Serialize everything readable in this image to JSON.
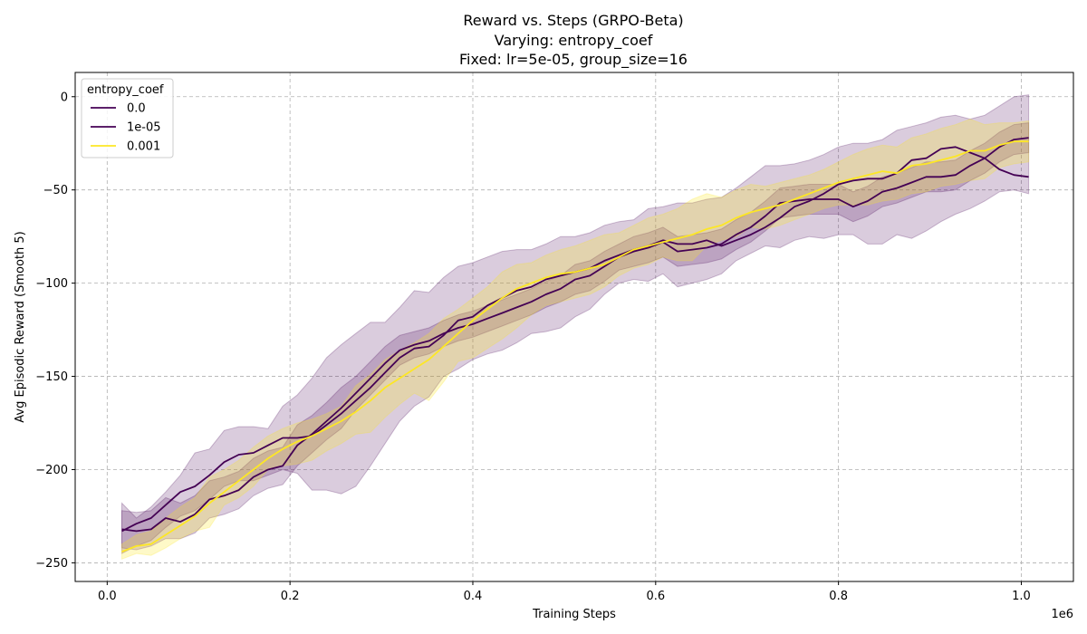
{
  "chart_data": {
    "type": "line",
    "title_lines": [
      "Reward vs. Steps (GRPO-Beta)",
      "Varying: entropy_coef",
      "Fixed: lr=5e-05, group_size=16"
    ],
    "xlabel": "Training Steps",
    "ylabel": "Avg Episodic Reward (Smooth 5)",
    "x_offset_label": "1e6",
    "xlim": [
      -35000,
      1057000
    ],
    "ylim": [
      -260,
      13
    ],
    "x_ticks": [
      0,
      0.2,
      0.4,
      0.6,
      0.8,
      1.0
    ],
    "x_tick_labels": [
      "0.0",
      "0.2",
      "0.4",
      "0.6",
      "0.8",
      "1.0"
    ],
    "y_ticks": [
      0,
      -50,
      -100,
      -150,
      -200,
      -250
    ],
    "y_tick_labels": [
      "0",
      "−50",
      "−100",
      "−150",
      "−200",
      "−250"
    ],
    "grid": true,
    "legend": {
      "title": "entropy_coef",
      "position": "upper-left"
    },
    "series": [
      {
        "name": "0.0",
        "color": "#440154",
        "band_color": "#440154",
        "x": [
          16000,
          32000,
          48000,
          64000,
          80000,
          96000,
          112000,
          128000,
          144000,
          160000,
          176000,
          192000,
          208000,
          224000,
          240000,
          256000,
          272000,
          288000,
          304000,
          320000,
          336000,
          352000,
          368000,
          384000,
          400000,
          416000,
          432000,
          448000,
          464000,
          480000,
          496000,
          512000,
          528000,
          544000,
          560000,
          576000,
          592000,
          608000,
          624000,
          640000,
          656000,
          672000,
          688000,
          704000,
          720000,
          736000,
          752000,
          768000,
          784000,
          800000,
          816000,
          832000,
          848000,
          864000,
          880000,
          896000,
          912000,
          928000,
          944000,
          960000,
          976000,
          992000,
          1008000
        ],
        "y": [
          -232,
          -233,
          -232,
          -226,
          -228,
          -224,
          -216,
          -214,
          -211,
          -204,
          -200,
          -198,
          -187,
          -181,
          -174,
          -167,
          -159,
          -151,
          -143,
          -136,
          -133,
          -131,
          -127,
          -124,
          -122,
          -119,
          -116,
          -113,
          -110,
          -106,
          -103,
          -98,
          -96,
          -91,
          -86,
          -83,
          -81,
          -78,
          -83,
          -82,
          -81,
          -79,
          -74,
          -70,
          -64,
          -57,
          -56,
          -55,
          -55,
          -55,
          -59,
          -56,
          -51,
          -49,
          -46,
          -43,
          -43,
          -42,
          -37,
          -33,
          -27,
          -23,
          -22
        ],
        "lower": [
          -242,
          -243,
          -241,
          -237,
          -237,
          -234,
          -226,
          -224,
          -221,
          -214,
          -210,
          -208,
          -198,
          -191,
          -184,
          -178,
          -168,
          -160,
          -152,
          -144,
          -140,
          -138,
          -134,
          -131,
          -129,
          -126,
          -123,
          -120,
          -117,
          -113,
          -110,
          -106,
          -104,
          -99,
          -93,
          -91,
          -89,
          -86,
          -91,
          -90,
          -89,
          -87,
          -82,
          -78,
          -72,
          -65,
          -64,
          -63,
          -63,
          -63,
          -67,
          -64,
          -59,
          -57,
          -54,
          -51,
          -51,
          -50,
          -45,
          -41,
          -35,
          -31,
          -30
        ],
        "upper": [
          -222,
          -223,
          -222,
          -215,
          -218,
          -214,
          -206,
          -204,
          -201,
          -194,
          -190,
          -188,
          -176,
          -171,
          -164,
          -156,
          -150,
          -142,
          -134,
          -128,
          -126,
          -124,
          -120,
          -117,
          -115,
          -112,
          -109,
          -106,
          -103,
          -99,
          -96,
          -90,
          -88,
          -83,
          -79,
          -75,
          -73,
          -70,
          -75,
          -74,
          -73,
          -71,
          -66,
          -62,
          -56,
          -49,
          -48,
          -47,
          -47,
          -47,
          -51,
          -48,
          -43,
          -41,
          -38,
          -35,
          -35,
          -34,
          -29,
          -25,
          -19,
          -15,
          -14
        ]
      },
      {
        "name": "1e-05",
        "color": "#440154",
        "band_color": "#440154",
        "x": [
          16000,
          32000,
          48000,
          64000,
          80000,
          96000,
          112000,
          128000,
          144000,
          160000,
          176000,
          192000,
          208000,
          224000,
          240000,
          256000,
          272000,
          288000,
          304000,
          320000,
          336000,
          352000,
          368000,
          384000,
          400000,
          416000,
          432000,
          448000,
          464000,
          480000,
          496000,
          512000,
          528000,
          544000,
          560000,
          576000,
          592000,
          608000,
          624000,
          640000,
          656000,
          672000,
          688000,
          704000,
          720000,
          736000,
          752000,
          768000,
          784000,
          800000,
          816000,
          832000,
          848000,
          864000,
          880000,
          896000,
          912000,
          928000,
          944000,
          960000,
          976000,
          992000,
          1008000
        ],
        "y": [
          -233,
          -229,
          -226,
          -219,
          -212,
          -209,
          -203,
          -196,
          -192,
          -191,
          -187,
          -183,
          -183,
          -182,
          -176,
          -170,
          -163,
          -156,
          -148,
          -140,
          -135,
          -134,
          -128,
          -120,
          -118,
          -112,
          -108,
          -104,
          -102,
          -98,
          -96,
          -94,
          -92,
          -88,
          -85,
          -82,
          -80,
          -77,
          -79,
          -79,
          -77,
          -80,
          -77,
          -74,
          -70,
          -65,
          -59,
          -56,
          -52,
          -47,
          -45,
          -44,
          -44,
          -41,
          -34,
          -33,
          -28,
          -27,
          -30,
          -33,
          -39,
          -42,
          -43
        ],
        "lower": [
          -245,
          -241,
          -238,
          -231,
          -225,
          -222,
          -216,
          -209,
          -206,
          -206,
          -203,
          -200,
          -202,
          -211,
          -211,
          -213,
          -209,
          -198,
          -186,
          -174,
          -166,
          -161,
          -150,
          -146,
          -141,
          -138,
          -136,
          -132,
          -127,
          -126,
          -124,
          -118,
          -114,
          -106,
          -100,
          -98,
          -99,
          -95,
          -102,
          -100,
          -98,
          -95,
          -88,
          -84,
          -80,
          -81,
          -77,
          -75,
          -76,
          -74,
          -74,
          -79,
          -79,
          -74,
          -76,
          -72,
          -67,
          -63,
          -60,
          -56,
          -51,
          -50,
          -52
        ],
        "upper": [
          -218,
          -226,
          -220,
          -212,
          -203,
          -191,
          -189,
          -179,
          -177,
          -177,
          -178,
          -166,
          -160,
          -151,
          -140,
          -133,
          -127,
          -121,
          -121,
          -113,
          -104,
          -105,
          -97,
          -91,
          -89,
          -86,
          -83,
          -82,
          -82,
          -79,
          -75,
          -75,
          -73,
          -69,
          -67,
          -66,
          -60,
          -59,
          -57,
          -57,
          -55,
          -54,
          -49,
          -43,
          -37,
          -37,
          -36,
          -34,
          -31,
          -27,
          -25,
          -25,
          -23,
          -18,
          -16,
          -14,
          -11,
          -10,
          -12,
          -10,
          -5,
          0,
          1
        ]
      },
      {
        "name": "0.001",
        "color": "#fde725",
        "band_color": "#fde725",
        "x": [
          16000,
          32000,
          48000,
          64000,
          80000,
          96000,
          112000,
          128000,
          144000,
          160000,
          176000,
          192000,
          208000,
          224000,
          240000,
          256000,
          272000,
          288000,
          304000,
          320000,
          336000,
          352000,
          368000,
          384000,
          400000,
          416000,
          432000,
          448000,
          464000,
          480000,
          496000,
          512000,
          528000,
          544000,
          560000,
          576000,
          592000,
          608000,
          624000,
          640000,
          656000,
          672000,
          688000,
          704000,
          720000,
          736000,
          752000,
          768000,
          784000,
          800000,
          816000,
          832000,
          848000,
          864000,
          880000,
          896000,
          912000,
          928000,
          944000,
          960000,
          976000,
          992000,
          1008000
        ],
        "y": [
          -244,
          -241,
          -240,
          -235,
          -230,
          -225,
          -218,
          -212,
          -206,
          -200,
          -194,
          -189,
          -185,
          -182,
          -178,
          -174,
          -169,
          -163,
          -156,
          -151,
          -146,
          -141,
          -134,
          -127,
          -120,
          -114,
          -108,
          -103,
          -100,
          -97,
          -95,
          -94,
          -92,
          -90,
          -86,
          -82,
          -80,
          -78,
          -76,
          -74,
          -71,
          -69,
          -65,
          -62,
          -60,
          -58,
          -55,
          -52,
          -49,
          -46,
          -44,
          -42,
          -40,
          -41,
          -37,
          -36,
          -34,
          -32,
          -29,
          -29,
          -26,
          -24,
          -24
        ],
        "lower": [
          -248,
          -245,
          -246,
          -242,
          -237,
          -233,
          -231,
          -219,
          -215,
          -209,
          -200,
          -198,
          -197,
          -195,
          -190,
          -186,
          -181,
          -180,
          -172,
          -165,
          -159,
          -163,
          -153,
          -142,
          -140,
          -135,
          -130,
          -124,
          -117,
          -112,
          -110,
          -108,
          -106,
          -102,
          -96,
          -92,
          -90,
          -86,
          -88,
          -88,
          -80,
          -77,
          -75,
          -70,
          -71,
          -69,
          -66,
          -63,
          -60,
          -58,
          -58,
          -58,
          -56,
          -55,
          -52,
          -51,
          -48,
          -47,
          -45,
          -44,
          -38,
          -36,
          -35
        ],
        "upper": [
          -240,
          -235,
          -233,
          -226,
          -220,
          -215,
          -204,
          -200,
          -195,
          -188,
          -182,
          -178,
          -175,
          -173,
          -170,
          -166,
          -155,
          -149,
          -141,
          -136,
          -132,
          -127,
          -119,
          -114,
          -108,
          -102,
          -94,
          -90,
          -89,
          -85,
          -82,
          -80,
          -77,
          -74,
          -73,
          -69,
          -65,
          -63,
          -60,
          -55,
          -52,
          -54,
          -50,
          -47,
          -48,
          -46,
          -44,
          -42,
          -39,
          -35,
          -31,
          -28,
          -26,
          -27,
          -22,
          -20,
          -17,
          -15,
          -12,
          -15,
          -14,
          -14,
          -13
        ]
      }
    ]
  }
}
